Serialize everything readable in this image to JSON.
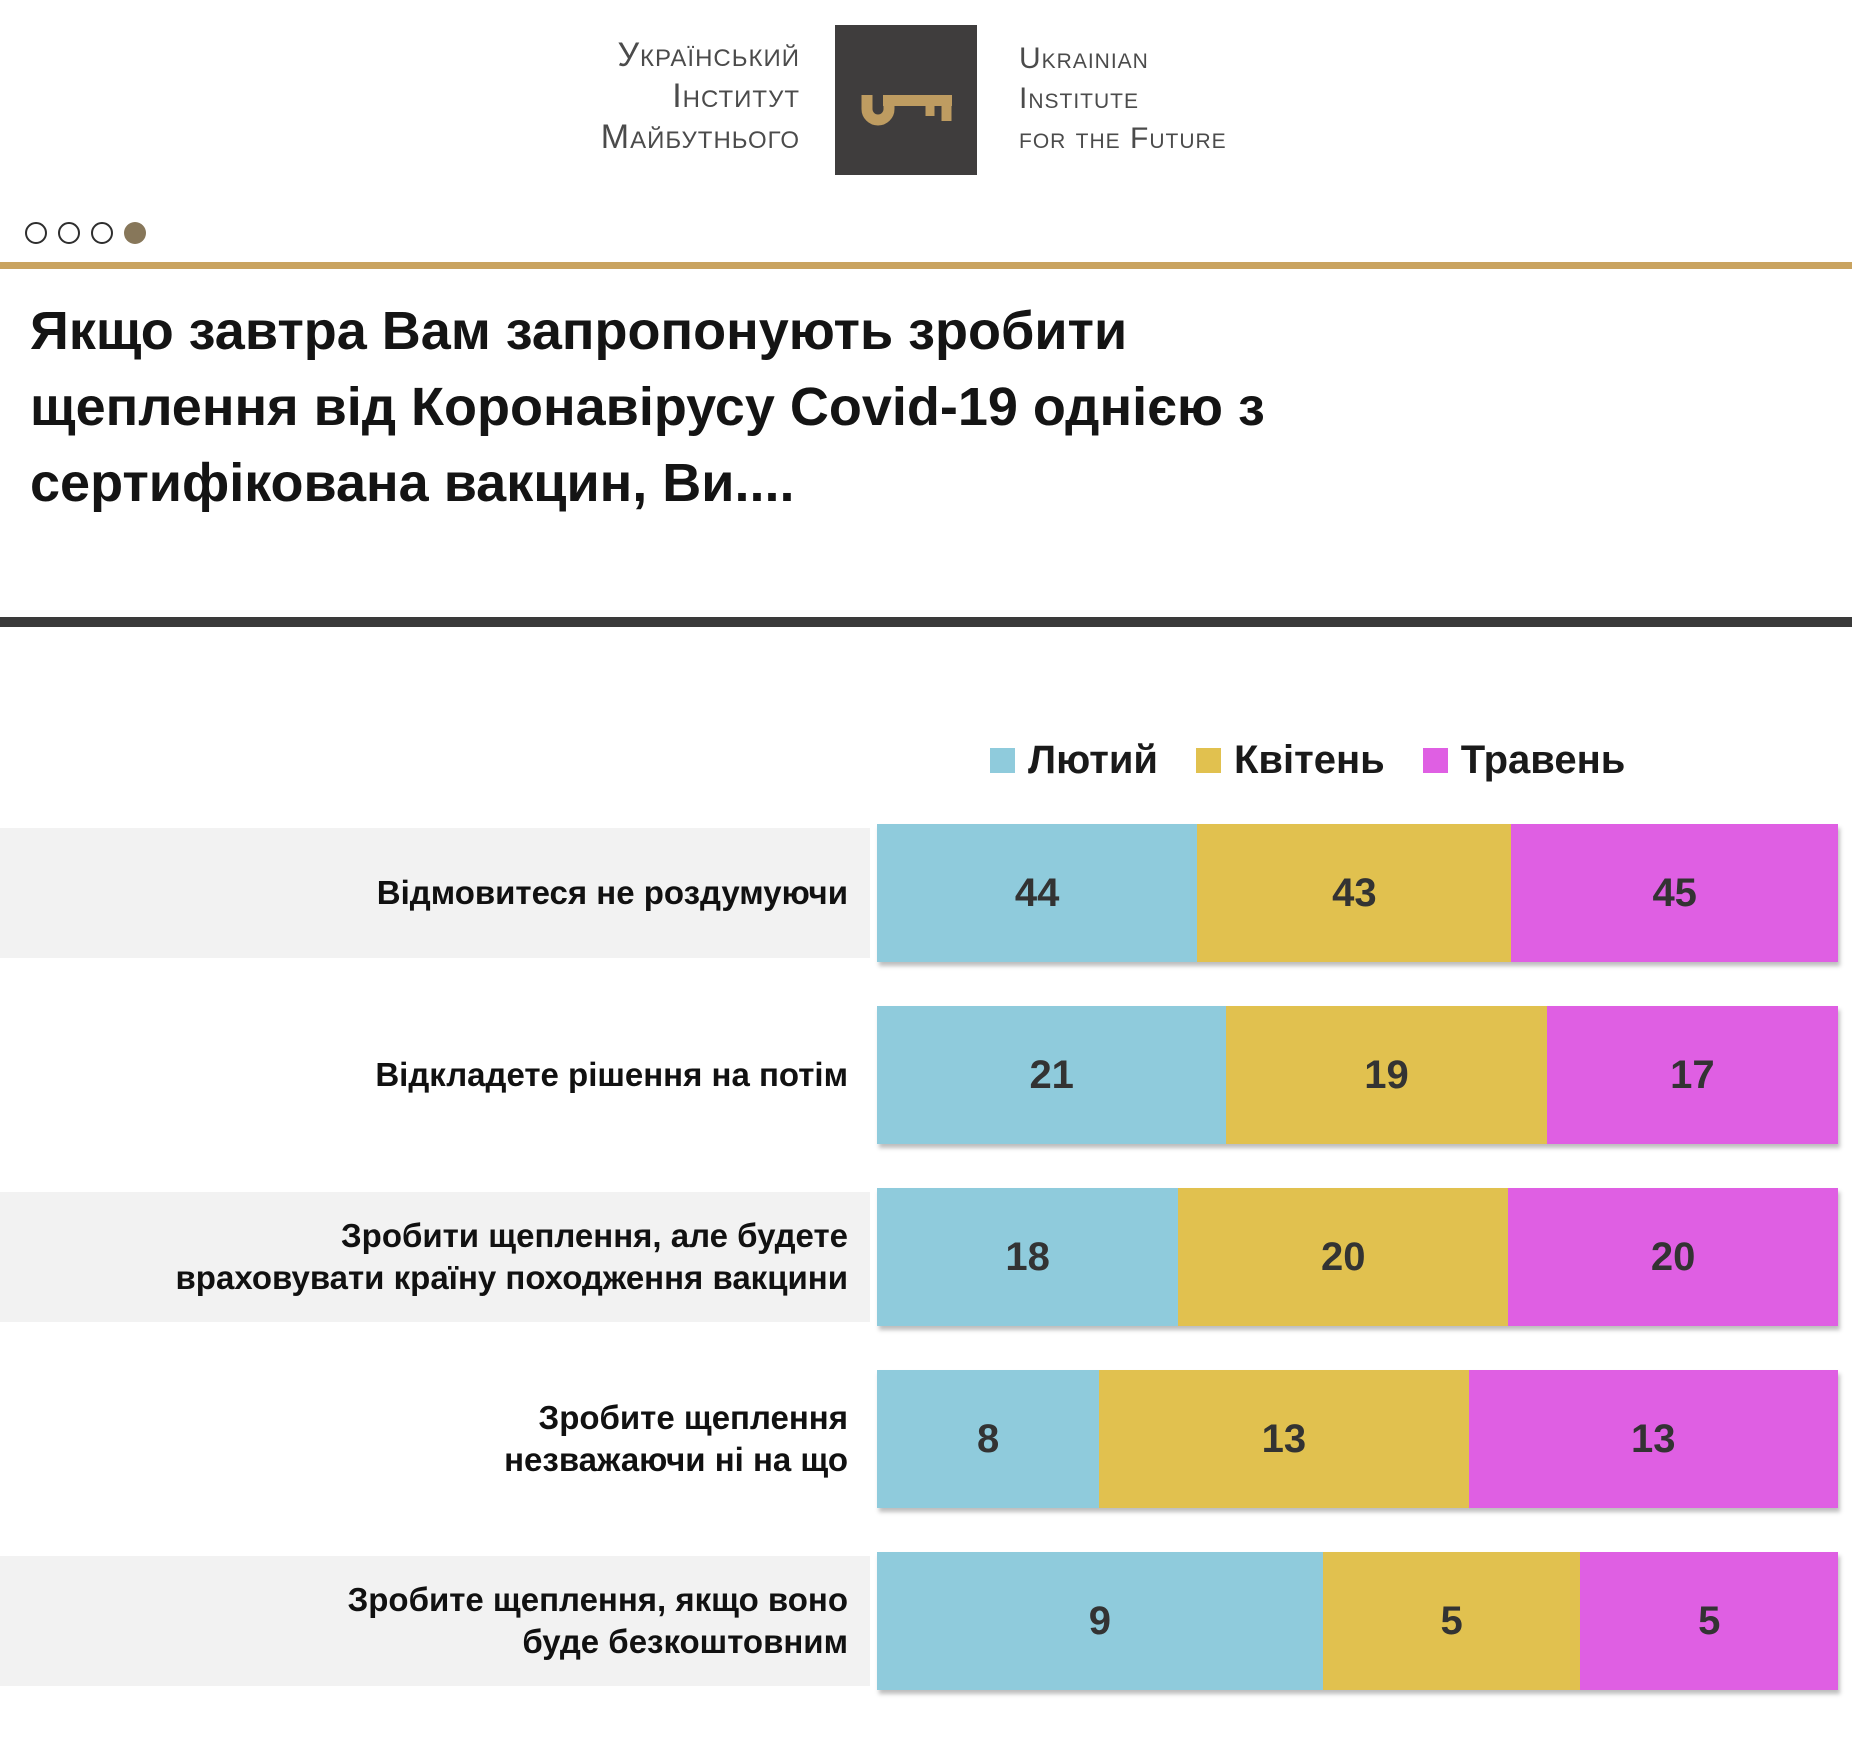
{
  "logo": {
    "uk_lines": [
      "Український",
      "Інститут",
      "Майбутнього"
    ],
    "en_lines": [
      "Ukrainian",
      "Institute",
      "for the Future"
    ],
    "square_color": "#3f3d3d",
    "key_icon_color": "#be9c61"
  },
  "carousel": {
    "dot_count": 4,
    "active_index": 3,
    "active_color": "#87775a"
  },
  "gold_line_color": "#c9a360",
  "title": {
    "lines": [
      "Якщо завтра Вам запропонують зробити",
      "щеплення від Коронавірусу Covid-19 однією з",
      "сертифікована вакцин, Ви...."
    ]
  },
  "chart_data": {
    "type": "bar",
    "subtype": "horizontal-stacked-100pct",
    "title": "Якщо завтра Вам запропонують зробити щеплення від Коронавірусу Covid-19 однією з сертифікована вакцин, Ви....",
    "legend_position": "top-right",
    "grid": false,
    "row_band_color": "#f2f2f2",
    "value_label_color": "#333333",
    "categories": [
      "Відмовитеся не роздумуючи",
      "Відкладете рішення на потім",
      "Зробити щеплення, але будете\nвраховувати країну походження вакцини",
      "Зробите щеплення\nнезважаючи ні на що",
      "Зробите щеплення, якщо воно\nбуде безкоштовним"
    ],
    "series": [
      {
        "name": "Лютий",
        "color": "#8fcbdc",
        "values": [
          44,
          21,
          18,
          8,
          9
        ]
      },
      {
        "name": "Квітень",
        "color": "#e1c14f",
        "values": [
          43,
          19,
          20,
          13,
          5
        ]
      },
      {
        "name": "Травень",
        "color": "#df5fe3",
        "values": [
          45,
          17,
          20,
          13,
          5
        ]
      }
    ]
  }
}
